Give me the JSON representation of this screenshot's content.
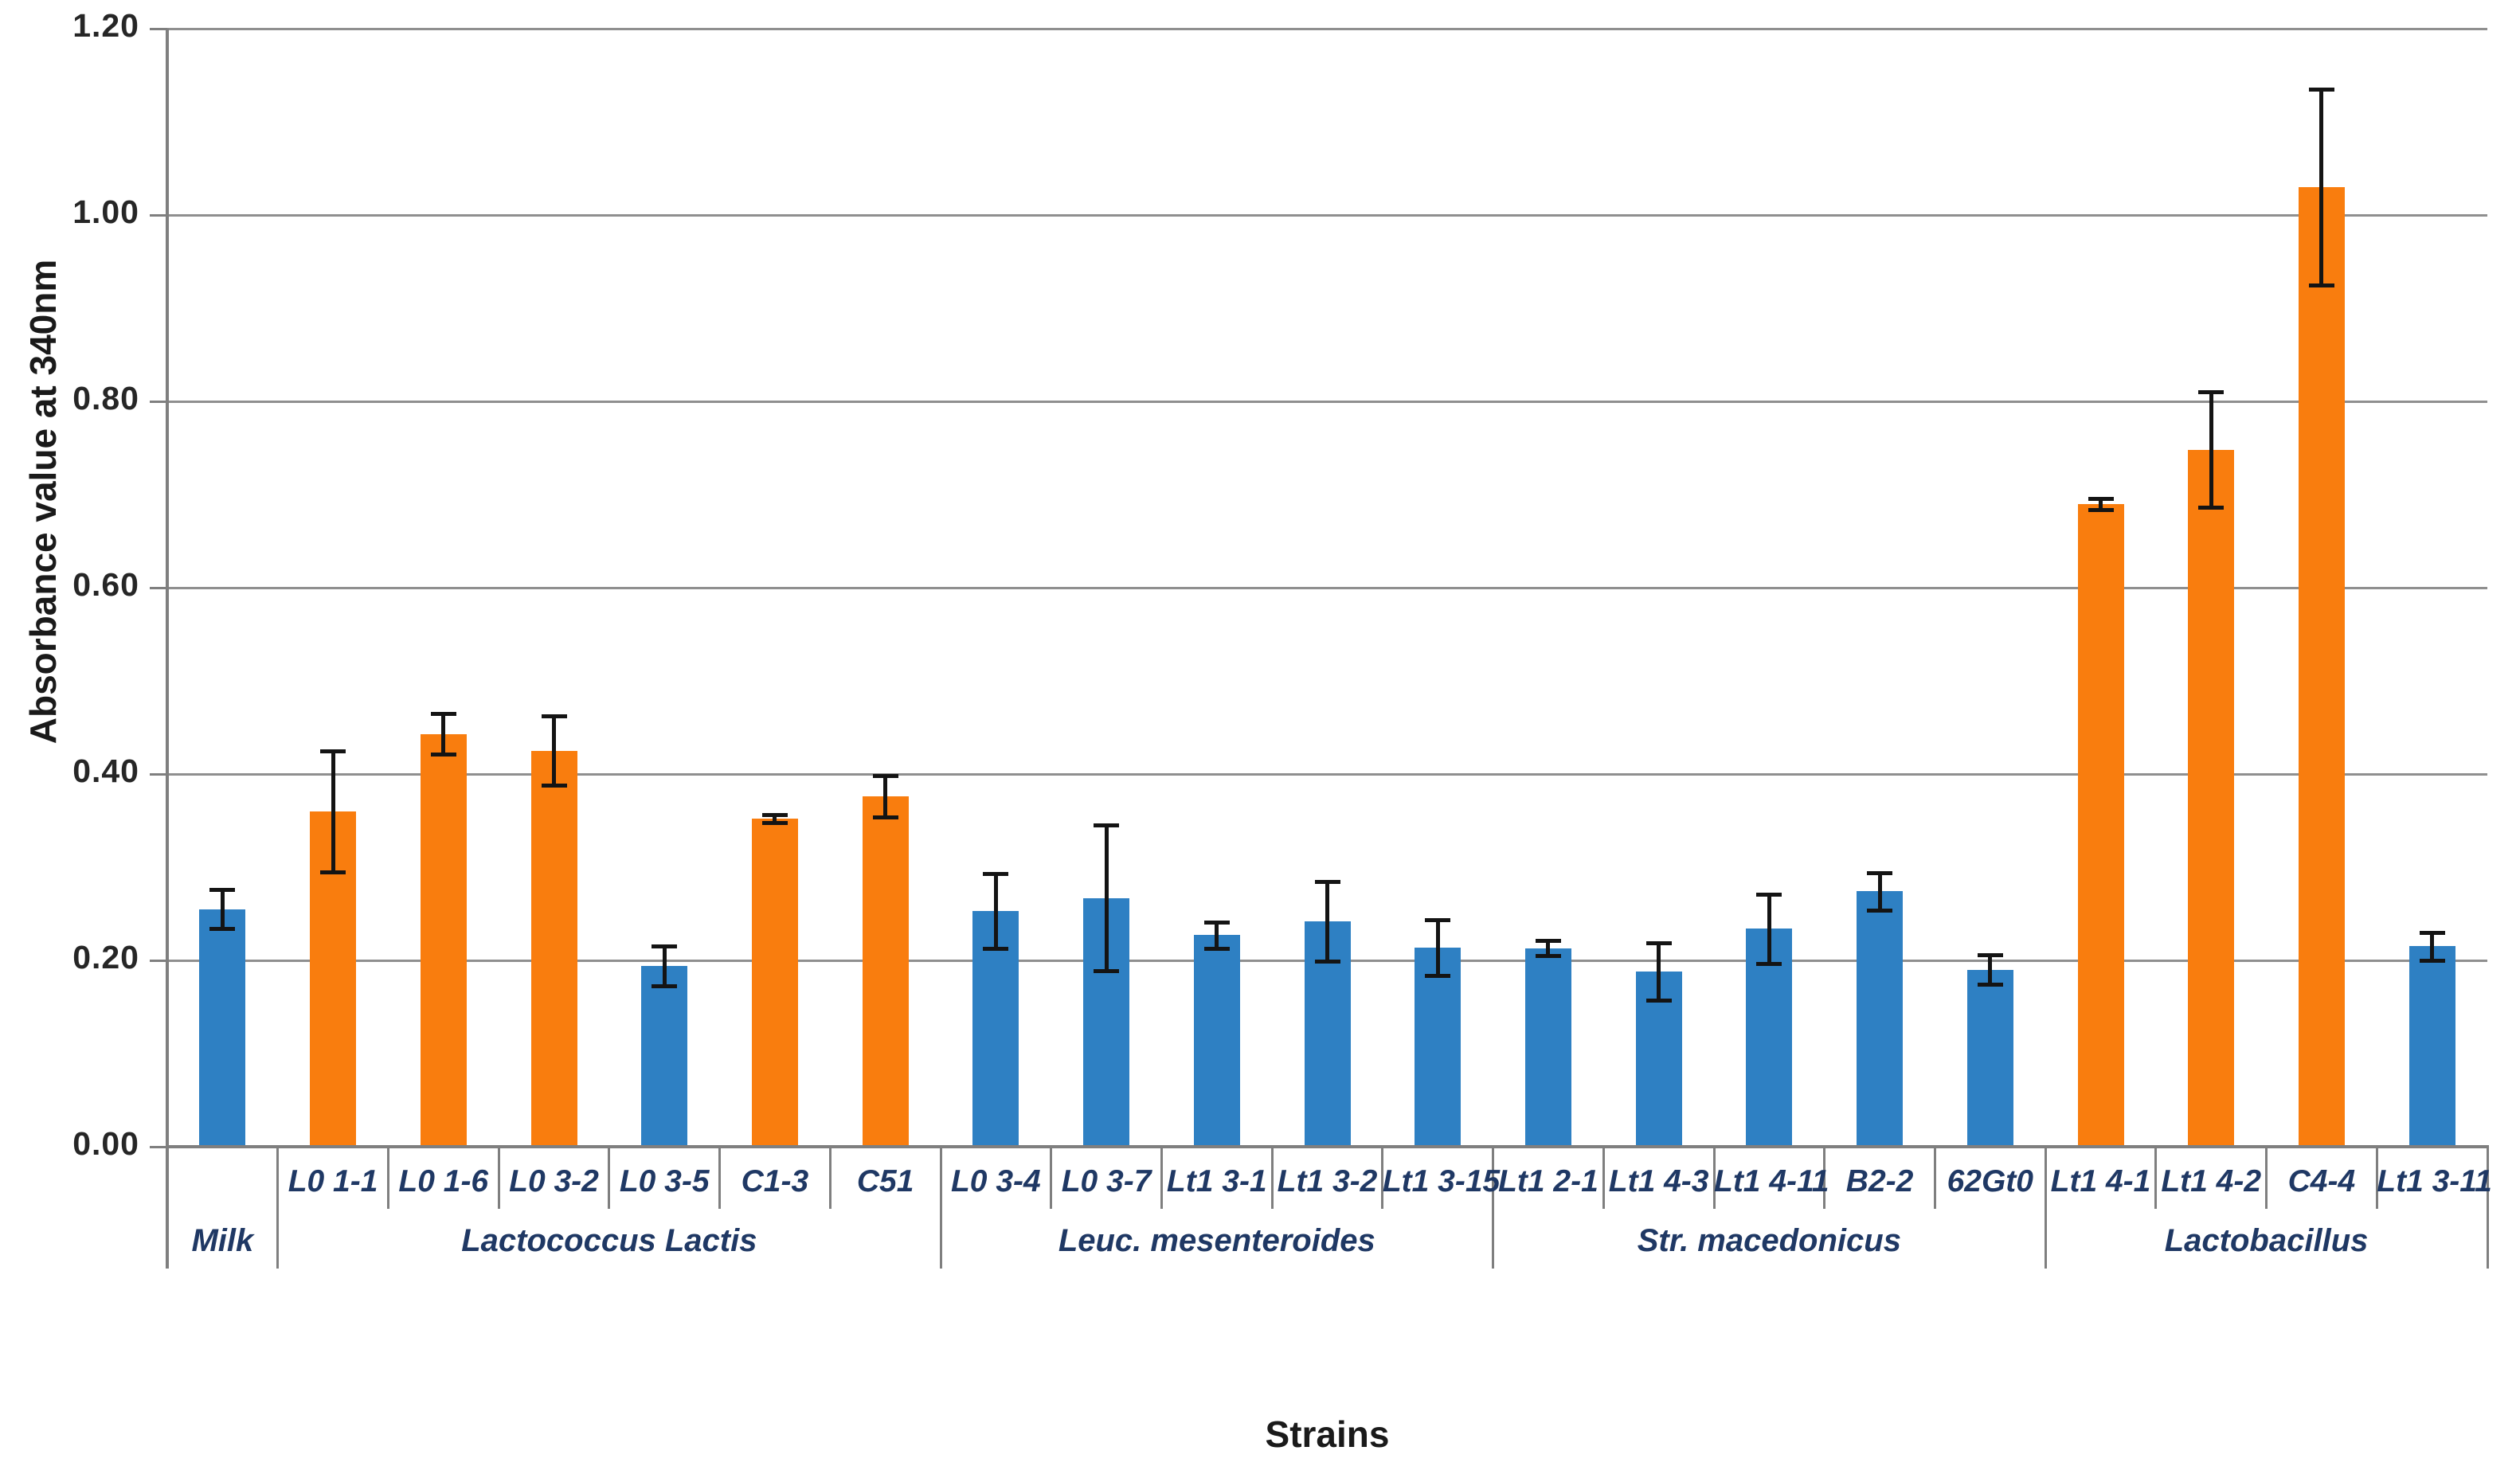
{
  "chart_data": {
    "type": "bar",
    "ylabel": "Absorbance value at 340nm",
    "xlabel": "Strains",
    "ylim": [
      0,
      1.2
    ],
    "yticks": [
      "1.20",
      "1.00",
      "0.80",
      "0.60",
      "0.40",
      "0.20",
      "0.00"
    ],
    "grid": true,
    "legend": "none",
    "bar_colors": {
      "blue": "#2E80C3",
      "orange": "#F97D0E"
    },
    "error_bar_color": "#141414",
    "grid_color": "#8F8F8F",
    "axis_color": "#7F7F7F",
    "category_label_color": "#1F3864",
    "groups": [
      {
        "label": "Milk",
        "strains": [
          {
            "label": "",
            "value": 0.255,
            "error": 0.021,
            "color": "blue"
          }
        ]
      },
      {
        "label": "Lactococcus Lactis",
        "strains": [
          {
            "label": "L0 1-1",
            "value": 0.36,
            "error": 0.065,
            "color": "orange"
          },
          {
            "label": "L0 1-6",
            "value": 0.443,
            "error": 0.022,
            "color": "orange"
          },
          {
            "label": "L0 3-2",
            "value": 0.425,
            "error": 0.037,
            "color": "orange"
          },
          {
            "label": "L0 3-5",
            "value": 0.194,
            "error": 0.021,
            "color": "blue"
          },
          {
            "label": "C1-3",
            "value": 0.352,
            "error": 0.004,
            "color": "orange"
          },
          {
            "label": "C51",
            "value": 0.376,
            "error": 0.022,
            "color": "orange"
          }
        ]
      },
      {
        "label": "Leuc. mesenteroides",
        "strains": [
          {
            "label": "L0 3-4",
            "value": 0.253,
            "error": 0.04,
            "color": "blue"
          },
          {
            "label": "L0 3-7",
            "value": 0.267,
            "error": 0.078,
            "color": "blue"
          },
          {
            "label": "Lt1 3-1",
            "value": 0.227,
            "error": 0.014,
            "color": "blue"
          },
          {
            "label": "Lt1 3-2",
            "value": 0.242,
            "error": 0.043,
            "color": "blue"
          },
          {
            "label": "Lt1 3-15",
            "value": 0.214,
            "error": 0.03,
            "color": "blue"
          }
        ]
      },
      {
        "label": "Str. macedonicus",
        "strains": [
          {
            "label": "Lt1 2-1",
            "value": 0.213,
            "error": 0.008,
            "color": "blue"
          },
          {
            "label": "Lt1 4-3",
            "value": 0.188,
            "error": 0.031,
            "color": "blue"
          },
          {
            "label": "Lt1 4-11",
            "value": 0.234,
            "error": 0.037,
            "color": "blue"
          },
          {
            "label": "B2-2",
            "value": 0.274,
            "error": 0.02,
            "color": "blue"
          },
          {
            "label": "62Gt0",
            "value": 0.19,
            "error": 0.016,
            "color": "blue"
          }
        ]
      },
      {
        "label": "Lactobacillus",
        "strains": [
          {
            "label": "Lt1 4-1",
            "value": 0.69,
            "error": 0.006,
            "color": "orange"
          },
          {
            "label": "Lt1 4-2",
            "value": 0.748,
            "error": 0.062,
            "color": "orange"
          },
          {
            "label": "C4-4",
            "value": 1.03,
            "error": 0.105,
            "color": "orange"
          },
          {
            "label": "Lt1 3-11",
            "value": 0.215,
            "error": 0.015,
            "color": "blue"
          }
        ]
      }
    ]
  }
}
